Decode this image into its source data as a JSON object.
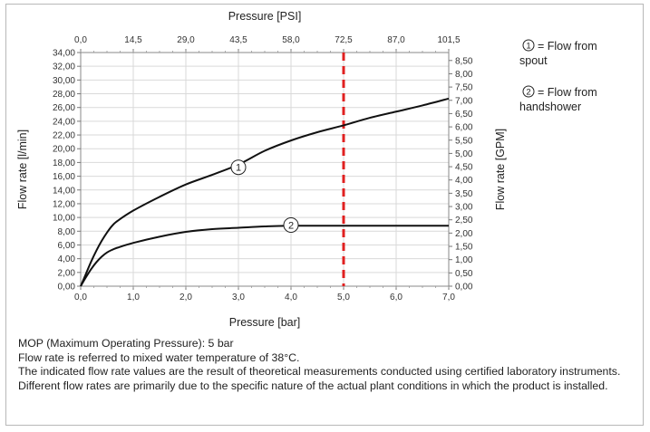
{
  "chart_data": {
    "type": "line",
    "x_label": "Pressure [bar]",
    "x_top_label": "Pressure [PSI]",
    "y_label": "Flow rate [l/min]",
    "y_right_label": "Flow rate [GPM]",
    "xlim": [
      0,
      7
    ],
    "ylim": [
      0,
      34
    ],
    "y_right_lim": [
      0,
      8.8
    ],
    "x_ticks": [
      "0,0",
      "1,0",
      "2,0",
      "3,0",
      "4,0",
      "5,0",
      "6,0",
      "7,0"
    ],
    "x_top_ticks": [
      "0,0",
      "14,5",
      "29,0",
      "43,5",
      "58,0",
      "72,5",
      "87,0",
      "101,5"
    ],
    "y_ticks": [
      "0,00",
      "2,00",
      "4,00",
      "6,00",
      "8,00",
      "10,00",
      "12,00",
      "14,00",
      "16,00",
      "18,00",
      "20,00",
      "22,00",
      "24,00",
      "26,00",
      "28,00",
      "30,00",
      "32,00",
      "34,00"
    ],
    "y_right_ticks": [
      "0,00",
      "0,50",
      "1,00",
      "1,50",
      "2,00",
      "2,50",
      "3,00",
      "3,50",
      "4,00",
      "4,50",
      "5,00",
      "5,50",
      "6,00",
      "6,50",
      "7,00",
      "7,50",
      "8,00",
      "8,50"
    ],
    "mop_line_x": 5,
    "mop_color": "#e02020",
    "series": [
      {
        "marker": "1",
        "color": "#111111",
        "marker_at": [
          3.0,
          17.3
        ],
        "x": [
          0,
          0.1,
          0.2,
          0.3,
          0.4,
          0.5,
          0.6,
          0.7,
          1.0,
          1.5,
          2.0,
          2.5,
          3.0,
          3.5,
          4.0,
          4.5,
          5.0,
          5.5,
          6.0,
          6.5,
          7.0
        ],
        "y": [
          0,
          1.8,
          3.6,
          5.2,
          6.6,
          7.8,
          8.8,
          9.5,
          11.0,
          13.0,
          14.8,
          16.2,
          17.7,
          19.7,
          21.2,
          22.4,
          23.4,
          24.5,
          25.4,
          26.3,
          27.3
        ]
      },
      {
        "marker": "2",
        "color": "#111111",
        "marker_at": [
          4.0,
          8.9
        ],
        "x": [
          0,
          0.1,
          0.2,
          0.3,
          0.4,
          0.5,
          0.6,
          0.7,
          1.0,
          1.5,
          2.0,
          2.5,
          3.0,
          3.5,
          4.0,
          5.0,
          6.0,
          7.0
        ],
        "y": [
          0,
          1.3,
          2.5,
          3.5,
          4.3,
          4.9,
          5.3,
          5.6,
          6.3,
          7.2,
          7.9,
          8.3,
          8.5,
          8.7,
          8.8,
          8.8,
          8.8,
          8.8
        ]
      }
    ],
    "legend": [
      {
        "marker": "1",
        "lines": [
          "= Flow from",
          "spout"
        ]
      },
      {
        "marker": "2",
        "lines": [
          "= Flow from",
          "handshower"
        ]
      }
    ]
  },
  "notes": [
    "MOP (Maximum Operating Pressure): 5 bar",
    "Flow rate is referred to mixed water temperature of 38°C.",
    "The indicated flow rate values are the result of theoretical measurements conducted using certified laboratory instruments.",
    "Different flow rates are primarily due to the specific nature of the actual plant conditions in which the product is installed."
  ]
}
